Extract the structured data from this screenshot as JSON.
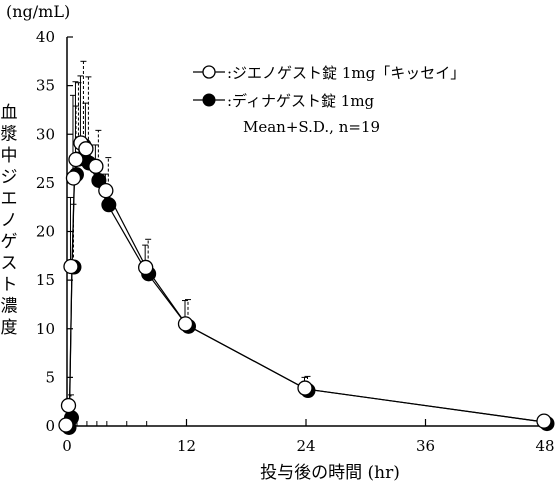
{
  "chart_data": {
    "type": "line",
    "unit_label": "(ng/mL)",
    "ylabel": "血漿中ジエノゲスト濃度",
    "xlabel": "投与後の時間 (hr)",
    "xlim": [
      0,
      48
    ],
    "ylim": [
      0,
      40
    ],
    "x_ticks": [
      0,
      12,
      24,
      36,
      48
    ],
    "y_ticks": [
      0,
      5,
      10,
      15,
      20,
      25,
      30,
      35,
      40
    ],
    "x_minor_ticks": [
      1,
      2,
      3,
      4,
      6,
      8
    ],
    "grid": false,
    "legend_position": "top-right",
    "stats_note": "Mean+S.D., n=19",
    "series": [
      {
        "name": ":ジエノゲスト錠 1mg「キッセイ」",
        "marker": "open-circle",
        "error_style": "dashed",
        "x": [
          0,
          0.25,
          0.5,
          0.75,
          1,
          1.5,
          2,
          3,
          4,
          8,
          12,
          24,
          48
        ],
        "y": [
          0,
          2.0,
          16.3,
          25.4,
          27.3,
          29.0,
          28.4,
          26.6,
          24.1,
          16.2,
          10.4,
          3.8,
          0.4
        ],
        "sd": [
          0,
          1.2,
          6.5,
          7.5,
          8.0,
          8.5,
          7.5,
          3.8,
          3.5,
          3.0,
          2.6,
          1.3,
          0.2
        ]
      },
      {
        "name": ":ディナゲスト錠 1mg",
        "marker": "filled-circle",
        "error_style": "solid",
        "x": [
          0,
          0.25,
          0.5,
          0.75,
          1,
          1.5,
          2,
          3,
          4,
          8,
          12,
          24,
          48
        ],
        "y": [
          0,
          1.0,
          16.5,
          26.0,
          27.6,
          29.0,
          27.2,
          25.4,
          22.9,
          15.8,
          10.4,
          3.8,
          0.4
        ],
        "sd": [
          0,
          1.0,
          7.0,
          8.0,
          7.8,
          7.0,
          6.0,
          3.5,
          3.0,
          2.8,
          2.5,
          1.2,
          0.2
        ]
      }
    ]
  }
}
